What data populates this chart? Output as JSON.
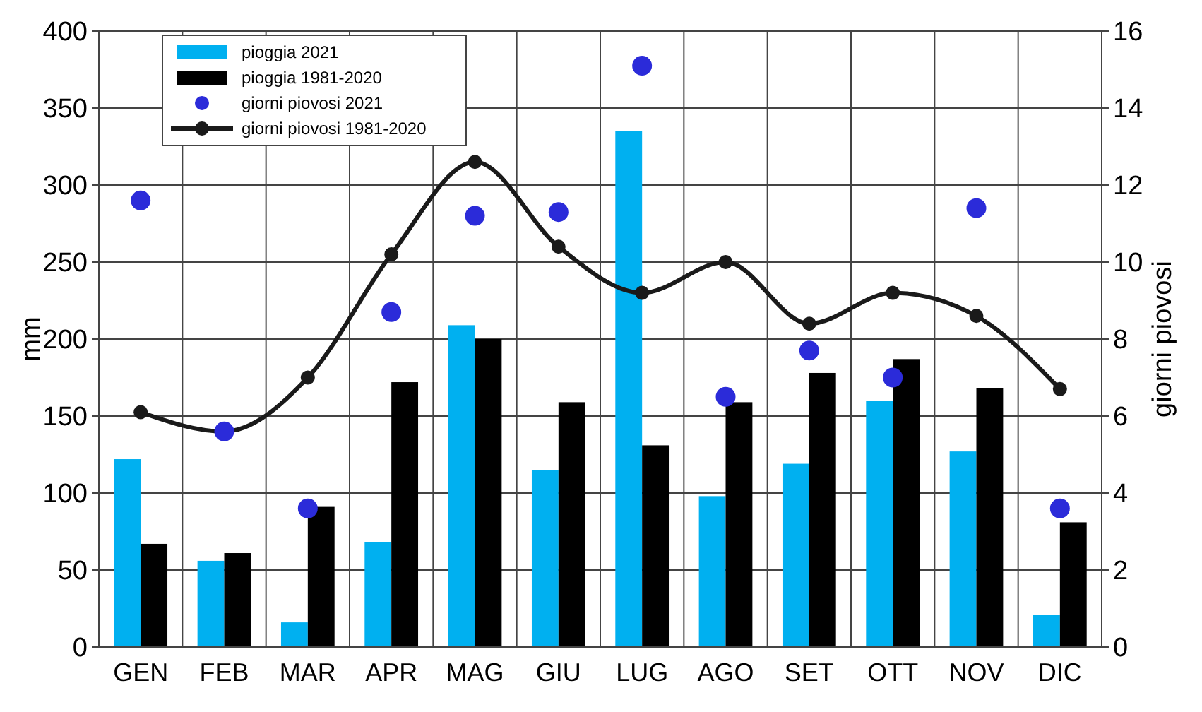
{
  "chart_data": {
    "type": "bar",
    "categories": [
      "GEN",
      "FEB",
      "MAR",
      "APR",
      "MAG",
      "GIU",
      "LUG",
      "AGO",
      "SET",
      "OTT",
      "NOV",
      "DIC"
    ],
    "ylabel": "mm",
    "y2label": "giorni piovosi",
    "ylim": [
      0,
      400
    ],
    "yticks": [
      0,
      50,
      100,
      150,
      200,
      250,
      300,
      350,
      400
    ],
    "y2lim": [
      0,
      16
    ],
    "y2ticks": [
      0,
      2,
      4,
      6,
      8,
      10,
      12,
      14,
      16
    ],
    "grid": true,
    "legend": "top left",
    "series": [
      {
        "name": "pioggia 2021",
        "color": "#00b0f0",
        "values": [
          122,
          56,
          16,
          68,
          209,
          115,
          335,
          98,
          119,
          160,
          127,
          21
        ]
      },
      {
        "name": "pioggia 1981-2020",
        "color": "#000000",
        "values": [
          67,
          61,
          91,
          172,
          200,
          159,
          131,
          159,
          178,
          187,
          168,
          81
        ]
      },
      {
        "name": "giorni piovosi 2021",
        "type": "scatter",
        "axis": "y2",
        "marker": "circle",
        "color": "#2b2bd9",
        "values": [
          11.6,
          5.6,
          3.6,
          8.7,
          11.2,
          11.3,
          15.1,
          6.5,
          7.7,
          7.0,
          11.4,
          3.6
        ]
      },
      {
        "name": "giorni piovosi 1981-2020",
        "type": "line",
        "axis": "y2",
        "marker": "circle",
        "line_style": "solid",
        "color": "#1a1a1a",
        "values": [
          6.1,
          5.6,
          7.0,
          10.2,
          12.6,
          10.4,
          9.2,
          10.0,
          8.4,
          9.2,
          8.6,
          6.7
        ]
      }
    ]
  }
}
